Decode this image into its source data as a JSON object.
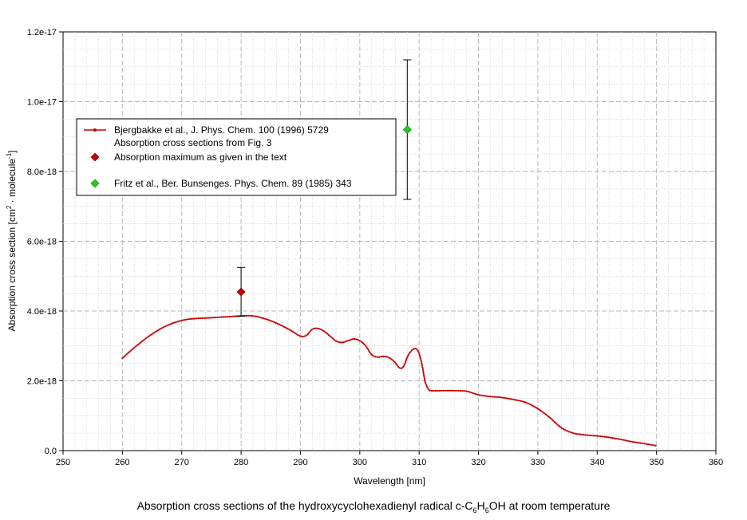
{
  "chart_data": {
    "type": "line",
    "xlabel": "Wavelength [nm]",
    "ylabel": {
      "prefix": "Absorption cross section [cm",
      "sup1": "2",
      "middle": " · molecule",
      "sup2": "-1",
      "suffix": "]"
    },
    "xlim": [
      250,
      360
    ],
    "ylim": [
      0,
      1.2e-17
    ],
    "x_ticks": [
      250,
      260,
      270,
      280,
      290,
      300,
      310,
      320,
      330,
      340,
      350,
      360
    ],
    "y_ticks": [
      {
        "value": 0,
        "label": "0.0"
      },
      {
        "value": 2e-18,
        "label": "2.0e-18"
      },
      {
        "value": 4e-18,
        "label": "4.0e-18"
      },
      {
        "value": 6e-18,
        "label": "6.0e-18"
      },
      {
        "value": 8e-18,
        "label": "8.0e-18"
      },
      {
        "value": 1e-17,
        "label": "1.0e-17"
      },
      {
        "value": 1.2e-17,
        "label": "1.2e-17"
      }
    ],
    "grid": true,
    "legend_position": "upper-left",
    "series": [
      {
        "name": "Bjergbakke et al., J. Phys. Chem. 100 (1996) 5729",
        "name_line2": "Absorption cross sections from Fig. 3",
        "type": "line",
        "color": "#cc0000",
        "x": [
          260,
          262,
          264,
          266,
          268,
          270,
          272,
          274,
          276,
          278,
          280,
          282,
          284,
          286,
          288,
          289,
          290,
          291,
          292,
          293,
          294,
          295,
          296,
          297,
          298,
          299,
          300,
          301,
          302,
          303,
          304,
          305,
          306,
          306.5,
          307,
          307.5,
          308,
          308.5,
          309,
          309.5,
          310,
          310.5,
          311,
          311.5,
          312,
          314,
          316,
          318,
          320,
          322,
          324,
          326,
          328,
          330,
          332,
          334,
          336,
          338,
          340,
          342,
          344,
          346,
          348,
          350
        ],
        "y": [
          2.65e-18,
          2.95e-18,
          3.22e-18,
          3.45e-18,
          3.62e-18,
          3.73e-18,
          3.78e-18,
          3.8e-18,
          3.82e-18,
          3.84e-18,
          3.86e-18,
          3.86e-18,
          3.78e-18,
          3.65e-18,
          3.48e-18,
          3.38e-18,
          3.28e-18,
          3.3e-18,
          3.48e-18,
          3.5e-18,
          3.42e-18,
          3.28e-18,
          3.14e-18,
          3.1e-18,
          3.15e-18,
          3.2e-18,
          3.15e-18,
          3e-18,
          2.75e-18,
          2.68e-18,
          2.7e-18,
          2.66e-18,
          2.52e-18,
          2.4e-18,
          2.36e-18,
          2.45e-18,
          2.68e-18,
          2.82e-18,
          2.9e-18,
          2.92e-18,
          2.78e-18,
          2.45e-18,
          1.98e-18,
          1.78e-18,
          1.72e-18,
          1.72e-18,
          1.72e-18,
          1.7e-18,
          1.6e-18,
          1.55e-18,
          1.52e-18,
          1.46e-18,
          1.38e-18,
          1.2e-18,
          9.5e-19,
          6.5e-19,
          5e-19,
          4.5e-19,
          4.2e-19,
          3.8e-19,
          3.2e-19,
          2.5e-19,
          2e-19,
          1.4e-19
        ]
      },
      {
        "name": "Absorption maximum as given in the text",
        "type": "scatter",
        "color": "#cc0000",
        "x": [
          280
        ],
        "y": [
          4.55e-18
        ],
        "err_low": [
          3.85e-18
        ],
        "err_high": [
          5.25e-18
        ]
      },
      {
        "name": "Fritz et al., Ber. Bunsenges. Phys. Chem. 89 (1985) 343",
        "type": "scatter",
        "color": "#22cc22",
        "x": [
          308
        ],
        "y": [
          9.2e-18
        ],
        "err_low": [
          7.2e-18
        ],
        "err_high": [
          1.12e-17
        ]
      }
    ],
    "caption": {
      "prefix": "Absorption cross sections of the hydroxycyclohexadienyl radical c-C",
      "sub1": "6",
      "mid": "H",
      "sub2": "6",
      "suffix": "OH at room temperature"
    }
  }
}
